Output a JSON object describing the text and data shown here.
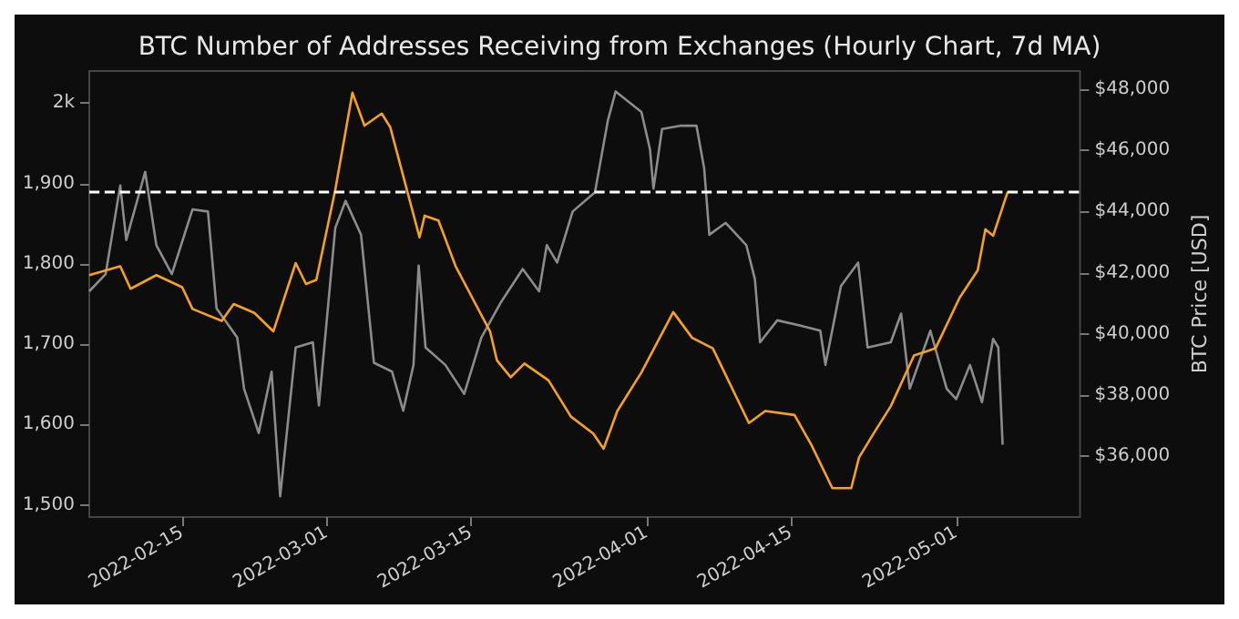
{
  "chart_data": {
    "type": "line",
    "title": "BTC Number of Addresses Receiving from Exchanges (Hourly Chart, 7d MA)",
    "y2label": "BTC Price [USD]",
    "xlim": [
      "2022-02-06",
      "2022-05-13"
    ],
    "xticks": [
      "2022-02-15",
      "2022-03-01",
      "2022-03-15",
      "2022-04-01",
      "2022-04-15",
      "2022-05-01"
    ],
    "ylim": [
      1485,
      2040
    ],
    "yticks": [
      {
        "value": 1500,
        "label": "1,500"
      },
      {
        "value": 1600,
        "label": "1,600"
      },
      {
        "value": 1700,
        "label": "1,700"
      },
      {
        "value": 1800,
        "label": "1,800"
      },
      {
        "value": 1900,
        "label": "1,900"
      },
      {
        "value": 2000,
        "label": "2k"
      }
    ],
    "y2lim": [
      34000,
      48600
    ],
    "y2ticks": [
      {
        "value": 36000,
        "label": "$36,000"
      },
      {
        "value": 38000,
        "label": "$38,000"
      },
      {
        "value": 40000,
        "label": "$40,000"
      },
      {
        "value": 42000,
        "label": "$42,000"
      },
      {
        "value": 44000,
        "label": "$44,000"
      },
      {
        "value": 46000,
        "label": "$46,000"
      },
      {
        "value": 48000,
        "label": "$48,000"
      }
    ],
    "grid": false,
    "marker": "none",
    "line_style": "solid",
    "ref_lines": [
      {
        "axis": "y",
        "value": 1890,
        "color": "#ffffff",
        "line_style": "dashed"
      }
    ],
    "series": [
      {
        "color": "#8c8c8c",
        "axis": "y2",
        "x": [
          "2022-02-06T00:00",
          "2022-02-07T14:00",
          "2022-02-09T00:00",
          "2022-02-09T14:00",
          "2022-02-11T10:00",
          "2022-02-12T12:00",
          "2022-02-14T00:00",
          "2022-02-16T00:00",
          "2022-02-17T12:00",
          "2022-02-18T08:00",
          "2022-02-20T08:00",
          "2022-02-21T00:00",
          "2022-02-22T10:00",
          "2022-02-23T16:00",
          "2022-02-24T12:00",
          "2022-02-26T00:00",
          "2022-02-27T16:00",
          "2022-02-28T06:00",
          "2022-03-01T20:00",
          "2022-03-02T20:00",
          "2022-03-04T08:00",
          "2022-03-05T14:00",
          "2022-03-07T08:00",
          "2022-03-08T10:00",
          "2022-03-09T10:00",
          "2022-03-09T22:00",
          "2022-03-10T14:00",
          "2022-03-12T12:00",
          "2022-03-14T08:00",
          "2022-03-16T00:00",
          "2022-03-17T20:00",
          "2022-03-20T00:00",
          "2022-03-21T14:00",
          "2022-03-22T08:00",
          "2022-03-23T08:00",
          "2022-03-24T20:00",
          "2022-03-27T00:00",
          "2022-03-28T06:00",
          "2022-03-29T00:00",
          "2022-03-31T12:00",
          "2022-04-01T08:00",
          "2022-04-01T16:00",
          "2022-04-02T12:00",
          "2022-04-04T08:00",
          "2022-04-05T20:00",
          "2022-04-06T14:00",
          "2022-04-07T02:00",
          "2022-04-08T16:00",
          "2022-04-10T16:00",
          "2022-04-11T12:00",
          "2022-04-12T00:00",
          "2022-04-13T16:00",
          "2022-04-15T20:00",
          "2022-04-17T20:00",
          "2022-04-18T08:00",
          "2022-04-19T20:00",
          "2022-04-21T12:00",
          "2022-04-22T10:00",
          "2022-04-24T16:00",
          "2022-04-25T16:00",
          "2022-04-26T12:00",
          "2022-04-28T12:00",
          "2022-04-30T02:00",
          "2022-05-01T00:00",
          "2022-05-02T08:00",
          "2022-05-03T12:00",
          "2022-05-04T14:00",
          "2022-05-05T02:00",
          "2022-05-05T12:00"
        ],
        "values": [
          41390,
          41950,
          44850,
          43070,
          45300,
          42900,
          41950,
          44070,
          44000,
          40830,
          39880,
          38200,
          36750,
          38760,
          34680,
          39550,
          39720,
          37650,
          43460,
          44350,
          43240,
          39050,
          38760,
          37480,
          38980,
          42230,
          39550,
          38980,
          38030,
          39880,
          41000,
          42120,
          41390,
          42900,
          42330,
          44000,
          44630,
          46980,
          47930,
          47260,
          46030,
          44750,
          46700,
          46810,
          46810,
          45410,
          43240,
          43630,
          42900,
          41780,
          39720,
          40440,
          40270,
          40100,
          38980,
          41560,
          42330,
          39550,
          39720,
          40660,
          38200,
          40100,
          38200,
          37860,
          38980,
          37760,
          39830,
          39550,
          36370
        ]
      },
      {
        "color": "#f7a21b",
        "x": [
          "2022-02-06T00:00",
          "2022-02-09T00:00",
          "2022-02-10T00:00",
          "2022-02-12T12:00",
          "2022-02-15T00:00",
          "2022-02-16T00:00",
          "2022-02-18T20:00",
          "2022-02-20T00:00",
          "2022-02-22T00:00",
          "2022-02-23T20:00",
          "2022-02-26T00:00",
          "2022-02-27T00:00",
          "2022-02-28T00:00",
          "2022-03-01T20:00",
          "2022-03-03T12:00",
          "2022-03-04T16:00",
          "2022-03-06T08:00",
          "2022-03-07T04:00",
          "2022-03-10T00:00",
          "2022-03-10T12:00",
          "2022-03-11T20:00",
          "2022-03-13T12:00",
          "2022-03-16T20:00",
          "2022-03-17T12:00",
          "2022-03-18T20:00",
          "2022-03-20T04:00",
          "2022-03-22T12:00",
          "2022-03-24T16:00",
          "2022-03-26T20:00",
          "2022-03-27T20:00",
          "2022-03-29T04:00",
          "2022-03-31T12:00",
          "2022-04-03T14:00",
          "2022-04-05T10:00",
          "2022-04-07T10:00",
          "2022-04-10T22:00",
          "2022-04-12T12:00",
          "2022-04-15T08:00",
          "2022-04-17T00:00",
          "2022-04-19T00:00",
          "2022-04-20T20:00",
          "2022-04-21T14:00",
          "2022-04-23T00:00",
          "2022-04-24T16:00",
          "2022-04-26T22:00",
          "2022-04-29T00:00",
          "2022-05-01T08:00",
          "2022-05-03T02:00",
          "2022-05-03T20:00",
          "2022-05-04T14:00",
          "2022-05-06T00:00"
        ],
        "values": [
          1786,
          1797,
          1769,
          1786,
          1771,
          1744,
          1729,
          1750,
          1739,
          1716,
          1801,
          1775,
          1780,
          1892,
          2013,
          1972,
          1987,
          1970,
          1833,
          1860,
          1854,
          1797,
          1716,
          1680,
          1659,
          1676,
          1655,
          1610,
          1589,
          1570,
          1617,
          1665,
          1740,
          1708,
          1695,
          1602,
          1617,
          1612,
          1574,
          1521,
          1521,
          1559,
          1589,
          1623,
          1686,
          1695,
          1758,
          1792,
          1843,
          1835,
          1890
        ]
      }
    ]
  }
}
